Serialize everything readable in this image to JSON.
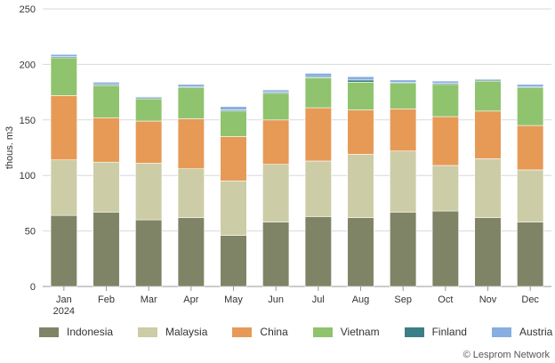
{
  "chart_data": {
    "type": "bar",
    "stacked": true,
    "ylabel": "thous. m3",
    "ylim": [
      0,
      250
    ],
    "yticks": [
      0,
      50,
      100,
      150,
      200,
      250
    ],
    "grid": true,
    "legend_position": "bottom",
    "categories": [
      "Jan",
      "Feb",
      "Mar",
      "Apr",
      "May",
      "Jun",
      "Jul",
      "Aug",
      "Sep",
      "Oct",
      "Nov",
      "Dec"
    ],
    "category_sublabels": [
      "2024",
      "",
      "",
      "",
      "",
      "",
      "",
      "",
      "",
      "",
      "",
      ""
    ],
    "series": [
      {
        "name": "Indonesia",
        "color": "#7f8466",
        "values": [
          64,
          67,
          60,
          62,
          46,
          58,
          63,
          62,
          67,
          68,
          62,
          58
        ]
      },
      {
        "name": "Malaysia",
        "color": "#cccca6",
        "values": [
          50,
          45,
          51,
          44,
          49,
          52,
          50,
          57,
          55,
          41,
          53,
          47
        ]
      },
      {
        "name": "China",
        "color": "#e69a56",
        "values": [
          58,
          40,
          38,
          45,
          40,
          40,
          48,
          40,
          38,
          44,
          43,
          40
        ]
      },
      {
        "name": "Vietnam",
        "color": "#8fc36e",
        "values": [
          34,
          29,
          20,
          28,
          23,
          24,
          27,
          25,
          23,
          29,
          27,
          34
        ]
      },
      {
        "name": "Finland",
        "color": "#3b7f86",
        "values": [
          1,
          1,
          1,
          1,
          1,
          1,
          1,
          2,
          1,
          1,
          1,
          1
        ]
      },
      {
        "name": "Austria",
        "color": "#88ade0",
        "values": [
          2,
          2,
          1,
          2,
          3,
          2,
          3,
          3,
          2,
          2,
          1,
          2
        ]
      }
    ]
  },
  "credit": "© Lesprom Network"
}
